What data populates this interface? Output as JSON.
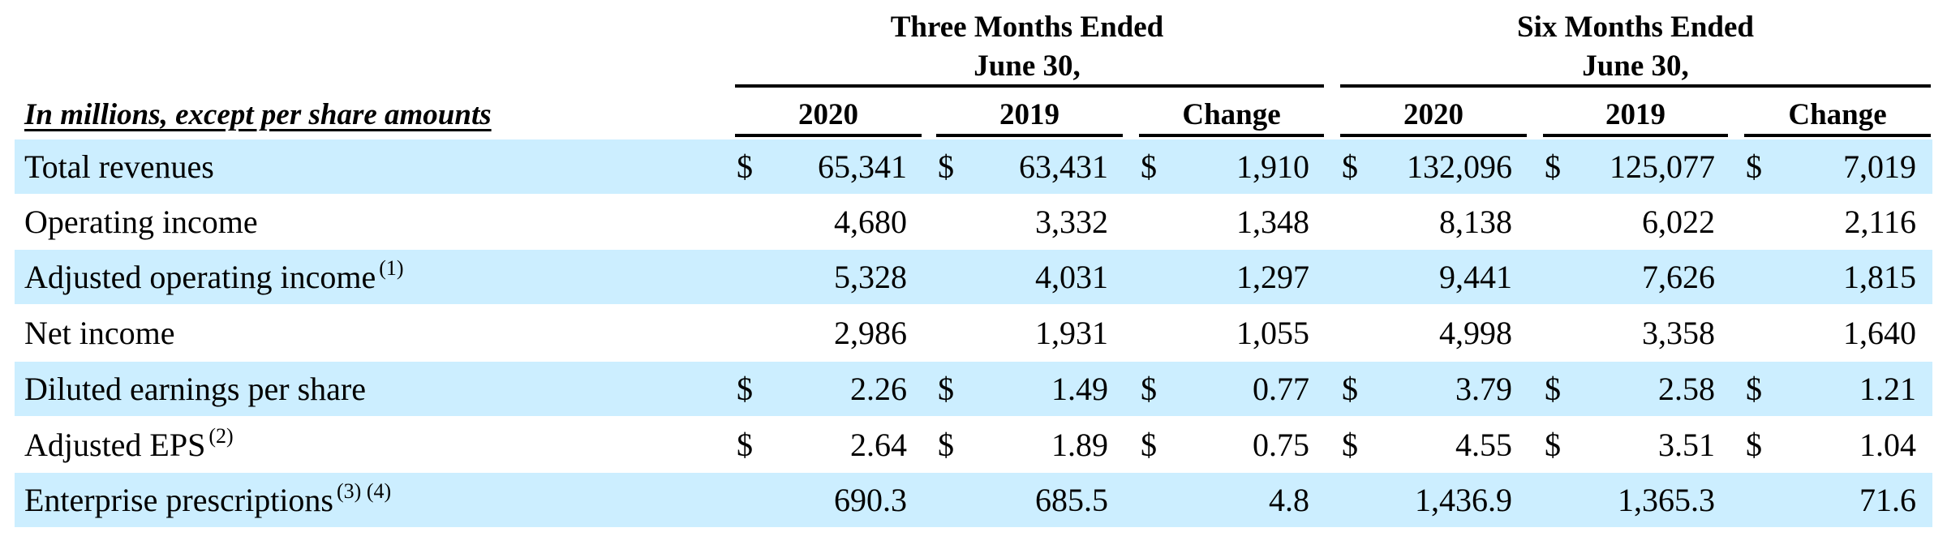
{
  "groups": [
    {
      "line1": "Three Months Ended",
      "line2": "June 30,"
    },
    {
      "line1": "Six Months Ended",
      "line2": "June 30,"
    }
  ],
  "unit_label": "In millions, except per share amounts",
  "columns": [
    "2020",
    "2019",
    "Change",
    "2020",
    "2019",
    "Change"
  ],
  "rows": [
    {
      "label": "Total revenues",
      "note": "",
      "currency": true,
      "values": [
        "65,341",
        "63,431",
        "1,910",
        "132,096",
        "125,077",
        "7,019"
      ]
    },
    {
      "label": "Operating income",
      "note": "",
      "currency": false,
      "values": [
        "4,680",
        "3,332",
        "1,348",
        "8,138",
        "6,022",
        "2,116"
      ]
    },
    {
      "label": "Adjusted operating income",
      "note": "(1)",
      "currency": false,
      "values": [
        "5,328",
        "4,031",
        "1,297",
        "9,441",
        "7,626",
        "1,815"
      ]
    },
    {
      "label": "Net income",
      "note": "",
      "currency": false,
      "values": [
        "2,986",
        "1,931",
        "1,055",
        "4,998",
        "3,358",
        "1,640"
      ]
    },
    {
      "label": "Diluted earnings per share",
      "note": "",
      "currency": true,
      "values": [
        "2.26",
        "1.49",
        "0.77",
        "3.79",
        "2.58",
        "1.21"
      ]
    },
    {
      "label": "Adjusted EPS",
      "note": "(2)",
      "currency": true,
      "values": [
        "2.64",
        "1.89",
        "0.75",
        "4.55",
        "3.51",
        "1.04"
      ]
    },
    {
      "label": "Enterprise prescriptions",
      "note": "(3) (4)",
      "currency": false,
      "values": [
        "690.3",
        "685.5",
        "4.8",
        "1,436.9",
        "1,365.3",
        "71.6"
      ]
    }
  ],
  "currency_symbol": "$",
  "colors": {
    "shade": "#cceeff",
    "text": "#000000"
  }
}
